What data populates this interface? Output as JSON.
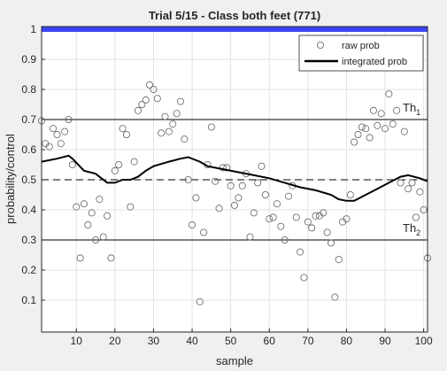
{
  "chart_data": {
    "type": "scatter",
    "title": "Trial 5/15 - Class both feet (771)",
    "xlabel": "sample",
    "ylabel": "probability/control",
    "xlim": [
      1,
      101
    ],
    "ylim": [
      0,
      1
    ],
    "xticks": [
      10,
      20,
      30,
      40,
      50,
      60,
      70,
      80,
      90,
      100
    ],
    "yticks": [
      0.1,
      0.2,
      0.3,
      0.4,
      0.5,
      0.6,
      0.7,
      0.8,
      0.9,
      1
    ],
    "grid": true,
    "legend": "top-right",
    "series": [
      {
        "name": "raw prob",
        "type": "scatter",
        "color": "#606060",
        "x": [
          1,
          2,
          3,
          4,
          5,
          6,
          7,
          8,
          9,
          10,
          11,
          12,
          13,
          14,
          15,
          16,
          17,
          18,
          19,
          20,
          21,
          22,
          23,
          24,
          25,
          26,
          27,
          28,
          29,
          30,
          31,
          32,
          33,
          34,
          35,
          36,
          37,
          38,
          39,
          40,
          41,
          42,
          43,
          44,
          45,
          46,
          47,
          48,
          49,
          50,
          51,
          52,
          53,
          54,
          55,
          56,
          57,
          58,
          59,
          60,
          61,
          62,
          63,
          64,
          65,
          66,
          67,
          68,
          69,
          70,
          71,
          72,
          73,
          74,
          75,
          76,
          77,
          78,
          79,
          80,
          81,
          82,
          83,
          84,
          85,
          86,
          87,
          88,
          89,
          90,
          91,
          92,
          93,
          94,
          95,
          96,
          97,
          98,
          99,
          100,
          101
        ],
        "values": [
          0.696,
          0.62,
          0.61,
          0.67,
          0.65,
          0.62,
          0.66,
          0.7,
          0.55,
          0.41,
          0.24,
          0.42,
          0.35,
          0.39,
          0.3,
          0.435,
          0.31,
          0.38,
          0.24,
          0.53,
          0.55,
          0.67,
          0.65,
          0.41,
          0.56,
          0.73,
          0.75,
          0.765,
          0.815,
          0.8,
          0.77,
          0.655,
          0.71,
          0.66,
          0.685,
          0.72,
          0.76,
          0.635,
          0.5,
          0.35,
          0.44,
          0.095,
          0.325,
          0.55,
          0.675,
          0.495,
          0.405,
          0.54,
          0.54,
          0.48,
          0.415,
          0.44,
          0.48,
          0.52,
          0.31,
          0.39,
          0.49,
          0.545,
          0.45,
          0.37,
          0.375,
          0.42,
          0.345,
          0.3,
          0.445,
          0.48,
          0.375,
          0.26,
          0.175,
          0.36,
          0.34,
          0.38,
          0.38,
          0.39,
          0.325,
          0.29,
          0.11,
          0.235,
          0.36,
          0.37,
          0.45,
          0.625,
          0.65,
          0.675,
          0.67,
          0.64,
          0.73,
          0.68,
          0.72,
          0.67,
          0.785,
          0.685,
          0.73,
          0.49,
          0.66,
          0.47,
          0.49,
          0.375,
          0.46,
          0.4,
          0.24
        ]
      },
      {
        "name": "integrated prob",
        "type": "line",
        "color": "#000000",
        "x": [
          1,
          5,
          8,
          9,
          12,
          15,
          18,
          20,
          22,
          24,
          26,
          28,
          30,
          34,
          37,
          39,
          42,
          44,
          48,
          52,
          56,
          60,
          64,
          68,
          72,
          76,
          78,
          80,
          82,
          85,
          88,
          91,
          94,
          96,
          99,
          101
        ],
        "values": [
          0.56,
          0.57,
          0.58,
          0.57,
          0.53,
          0.52,
          0.49,
          0.49,
          0.5,
          0.5,
          0.51,
          0.53,
          0.545,
          0.56,
          0.57,
          0.575,
          0.56,
          0.545,
          0.535,
          0.525,
          0.515,
          0.505,
          0.49,
          0.475,
          0.465,
          0.45,
          0.435,
          0.43,
          0.43,
          0.45,
          0.47,
          0.49,
          0.51,
          0.515,
          0.505,
          0.495
        ]
      }
    ],
    "thresholds": [
      {
        "label": "Th",
        "subscript": "1",
        "value": 0.7,
        "style": "solid",
        "color": "#000000"
      },
      {
        "value": 0.5,
        "style": "dashed",
        "color": "#000000"
      },
      {
        "label": "Th",
        "subscript": "2",
        "value": 0.3,
        "style": "solid",
        "color": "#000000"
      }
    ],
    "control_bar": {
      "value": 1,
      "color": "#3c46f0"
    }
  }
}
